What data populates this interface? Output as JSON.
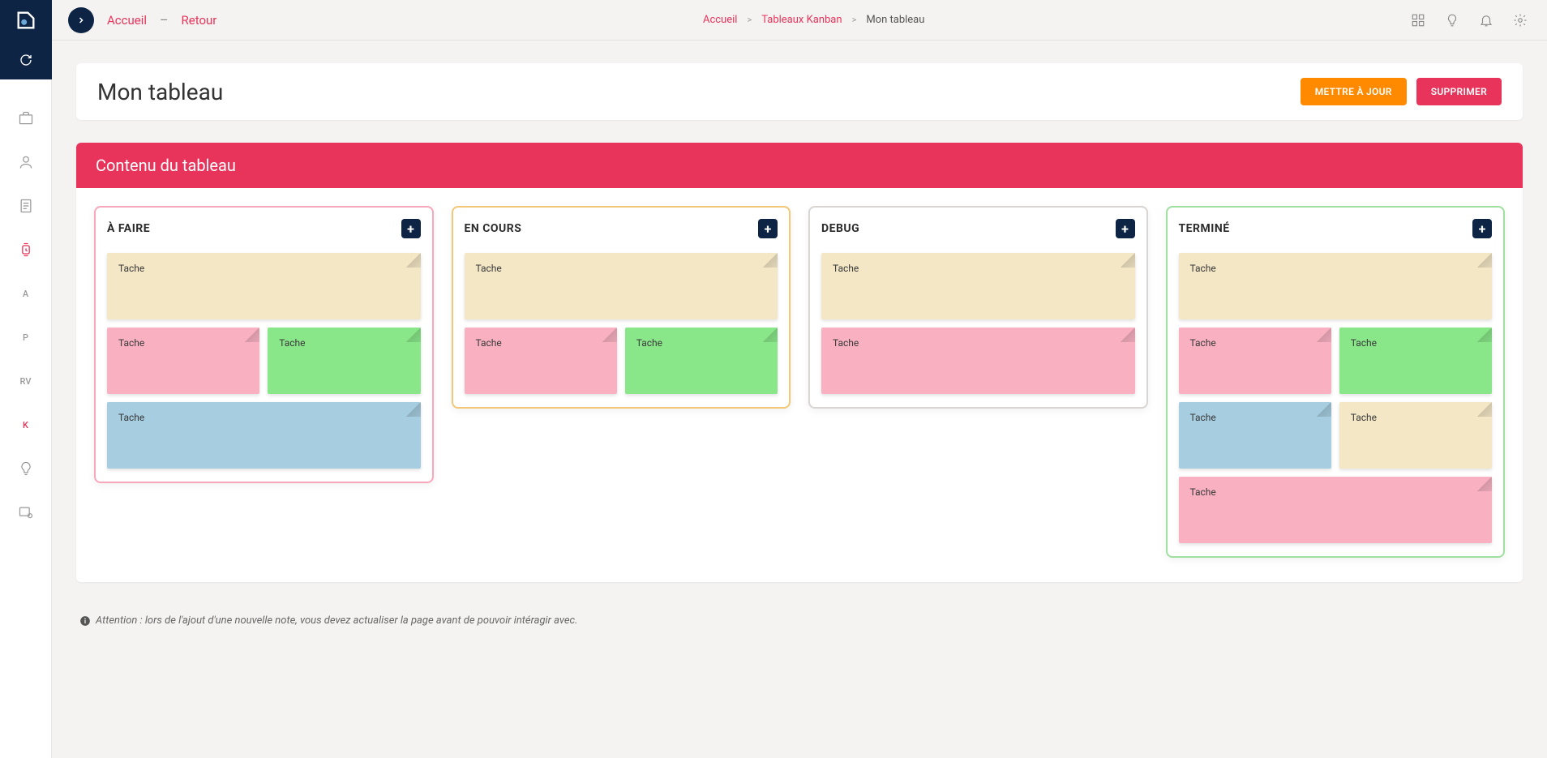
{
  "topbar": {
    "home_label": "Accueil",
    "back_label": "Retour"
  },
  "breadcrumb": {
    "home": "Accueil",
    "section": "Tableaux Kanban",
    "current": "Mon tableau"
  },
  "sidebar": {
    "text_items": [
      "A",
      "P",
      "RV",
      "K"
    ]
  },
  "title": {
    "text": "Mon tableau",
    "update_btn": "METTRE À JOUR",
    "delete_btn": "SUPPRIMER"
  },
  "board": {
    "header": "Contenu du tableau",
    "columns": [
      {
        "title": "À FAIRE",
        "border_color": "#f7a7bb",
        "cards": [
          {
            "label": "Tache",
            "size": "full",
            "bg": "#f4e7c6"
          },
          {
            "label": "Tache",
            "size": "half",
            "bg": "#f9b1c2"
          },
          {
            "label": "Tache",
            "size": "half",
            "bg": "#89e789"
          },
          {
            "label": "Tache",
            "size": "full",
            "bg": "#a6cde0"
          }
        ]
      },
      {
        "title": "EN COURS",
        "border_color": "#f2c877",
        "cards": [
          {
            "label": "Tache",
            "size": "full",
            "bg": "#f4e7c6"
          },
          {
            "label": "Tache",
            "size": "half",
            "bg": "#f9b1c2"
          },
          {
            "label": "Tache",
            "size": "half",
            "bg": "#89e789"
          }
        ]
      },
      {
        "title": "DEBUG",
        "border_color": "#d8d5d3",
        "cards": [
          {
            "label": "Tache",
            "size": "full",
            "bg": "#f4e7c6"
          },
          {
            "label": "Tache",
            "size": "full",
            "bg": "#f9b1c2"
          }
        ]
      },
      {
        "title": "TERMINÉ",
        "border_color": "#9fe09f",
        "cards": [
          {
            "label": "Tache",
            "size": "full",
            "bg": "#f4e7c6"
          },
          {
            "label": "Tache",
            "size": "half",
            "bg": "#f9b1c2"
          },
          {
            "label": "Tache",
            "size": "half",
            "bg": "#89e789"
          },
          {
            "label": "Tache",
            "size": "half",
            "bg": "#a6cde0"
          },
          {
            "label": "Tache",
            "size": "half",
            "bg": "#f4e7c6"
          },
          {
            "label": "Tache",
            "size": "full",
            "bg": "#f9b1c2"
          }
        ]
      }
    ]
  },
  "notice": "Attention : lors de l'ajout d'une nouvelle note, vous devez actualiser la page avant de pouvoir intéragir avec."
}
